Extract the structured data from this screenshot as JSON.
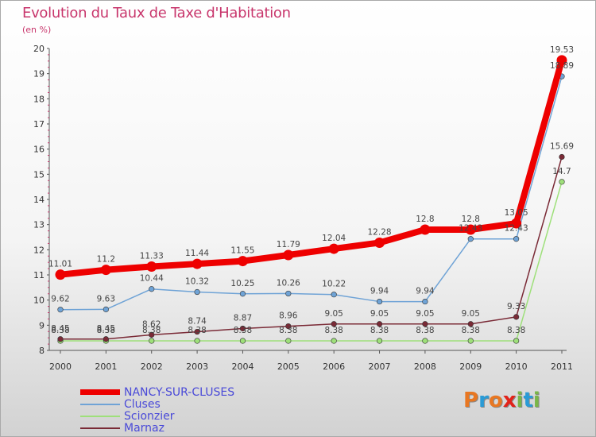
{
  "title": "Evolution du Taux de Taxe d'Habitation",
  "subtitle": "(en %)",
  "logo": {
    "text": "Proxiti",
    "colors": [
      "#e87722",
      "#2a9bd6",
      "#e87722",
      "#e2231a",
      "#7ab648",
      "#2a9bd6",
      "#7ab648"
    ]
  },
  "chart_data": {
    "type": "line",
    "x": [
      "2000",
      "2001",
      "2002",
      "2003",
      "2004",
      "2005",
      "2006",
      "2007",
      "2008",
      "2009",
      "2010",
      "2011"
    ],
    "ylim": [
      8,
      20
    ],
    "yticks": [
      "8",
      "9",
      "10",
      "11",
      "12",
      "13",
      "14",
      "15",
      "16",
      "17",
      "18",
      "19",
      "20"
    ],
    "grid": false,
    "legend_position": "bottom-left",
    "series": [
      {
        "name": "NANCY-SUR-CLUSES",
        "color": "#ee0000",
        "values": [
          11.01,
          11.2,
          11.33,
          11.44,
          11.55,
          11.79,
          12.04,
          12.28,
          12.8,
          12.8,
          13.05,
          19.53
        ],
        "labels": [
          "11.01",
          "11.2",
          "11.33",
          "11.44",
          "11.55",
          "11.79",
          "12.04",
          "12.28",
          "12.8",
          "12.8",
          "13.05",
          "19.53"
        ]
      },
      {
        "name": "Cluses",
        "color": "#6fa3d6",
        "values": [
          9.62,
          9.63,
          10.44,
          10.32,
          10.25,
          10.26,
          10.22,
          9.94,
          9.94,
          12.43,
          12.43,
          18.89
        ],
        "labels": [
          "9.62",
          "9.63",
          "10.44",
          "10.32",
          "10.25",
          "10.26",
          "10.22",
          "9.94",
          "9.94",
          "12.43",
          "12.43",
          "18.89"
        ]
      },
      {
        "name": "Scionzier",
        "color": "#9ee07a",
        "values": [
          8.38,
          8.38,
          8.38,
          8.38,
          8.38,
          8.38,
          8.38,
          8.38,
          8.38,
          8.38,
          8.38,
          14.7
        ],
        "labels": [
          "8.38",
          "8.38",
          "8.38",
          "8.38",
          "8.38",
          "8.38",
          "8.38",
          "8.38",
          "8.38",
          "8.38",
          "8.38",
          "14.7"
        ]
      },
      {
        "name": "Marnaz",
        "color": "#7a2a36",
        "values": [
          8.45,
          8.45,
          8.62,
          8.74,
          8.87,
          8.96,
          9.05,
          9.05,
          9.05,
          9.05,
          9.33,
          15.69
        ],
        "labels": [
          "8.45",
          "8.45",
          "8.62",
          "8.74",
          "8.87",
          "8.96",
          "9.05",
          "9.05",
          "9.05",
          "9.05",
          "9.33",
          "15.69"
        ]
      }
    ]
  }
}
